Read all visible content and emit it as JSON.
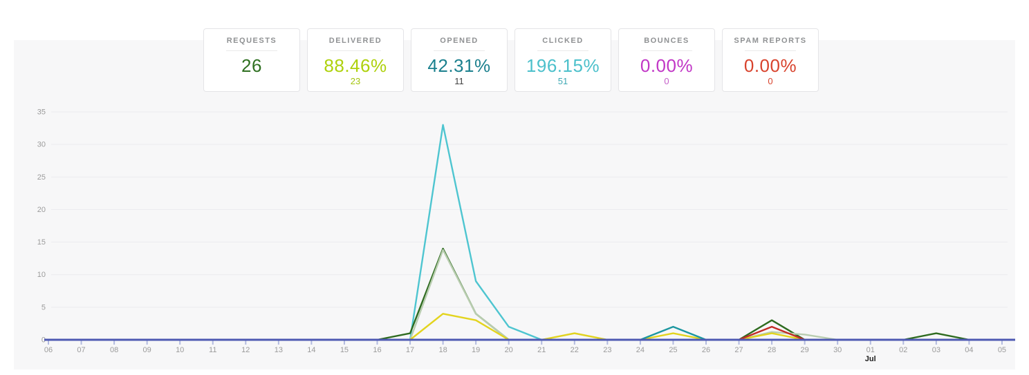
{
  "page": {
    "background": "#ffffff",
    "panel_background": "#f7f7f8"
  },
  "cards": [
    {
      "title": "REQUESTS",
      "value": "26",
      "sub": "",
      "color": "#2f7021",
      "sub_color": "#2f7021"
    },
    {
      "title": "DELIVERED",
      "value": "88.46%",
      "sub": "23",
      "color": "#aed10c",
      "sub_color": "#a3c40d"
    },
    {
      "title": "OPENED",
      "value": "42.31%",
      "sub": "11",
      "color": "#1b808e",
      "sub_color": "#414141"
    },
    {
      "title": "CLICKED",
      "value": "196.15%",
      "sub": "51",
      "color": "#4cc0cb",
      "sub_color": "#3fa9b4"
    },
    {
      "title": "BOUNCES",
      "value": "0.00%",
      "sub": "0",
      "color": "#c136c6",
      "sub_color": "#c45fc9"
    },
    {
      "title": "SPAM REPORTS",
      "value": "0.00%",
      "sub": "0",
      "color": "#d8432d",
      "sub_color": "#d8432d"
    }
  ],
  "chart_data": {
    "type": "line",
    "title": "",
    "xlabel": "",
    "ylabel": "",
    "x_labels": [
      "06",
      "07",
      "08",
      "09",
      "10",
      "11",
      "12",
      "13",
      "14",
      "15",
      "16",
      "17",
      "18",
      "19",
      "20",
      "21",
      "22",
      "23",
      "24",
      "25",
      "26",
      "27",
      "28",
      "29",
      "30",
      "01",
      "02",
      "03",
      "04",
      "05"
    ],
    "month_break": {
      "index": 25,
      "label": "Jul"
    },
    "y_ticks": [
      0,
      5,
      10,
      15,
      20,
      25,
      30,
      35
    ],
    "ylim": [
      0,
      36.8
    ],
    "grid": true,
    "legend": "none",
    "grid_color": "#ebebee",
    "axis_color": "#4e59b2",
    "tick_color": "#b3bbdf",
    "series": [
      {
        "name": "light-cyan",
        "color": "#4ec5d0",
        "values": [
          0,
          0,
          0,
          0,
          0,
          0,
          0,
          0,
          0,
          0,
          0,
          0,
          33,
          9,
          2,
          0,
          0,
          0,
          0,
          0,
          0,
          0,
          0,
          0,
          0,
          0,
          0,
          0,
          0,
          0
        ]
      },
      {
        "name": "dark-green",
        "color": "#2e6b1f",
        "values": [
          0,
          0,
          0,
          0,
          0,
          0,
          0,
          0,
          0,
          0,
          0,
          1,
          14,
          4,
          0,
          0,
          0,
          0,
          0,
          0,
          0,
          0,
          3,
          0,
          0,
          0,
          0,
          1,
          0,
          0
        ]
      },
      {
        "name": "pale-sage",
        "color": "#b9cdb0",
        "values": [
          0,
          0,
          0,
          0,
          0,
          0,
          0,
          0,
          0,
          0,
          0,
          0,
          13.8,
          4,
          0,
          0,
          1,
          0,
          0,
          0,
          0,
          0,
          1.2,
          0.8,
          0,
          0,
          0,
          0,
          0,
          0
        ]
      },
      {
        "name": "yellow",
        "color": "#e3d41e",
        "values": [
          0,
          0,
          0,
          0,
          0,
          0,
          0,
          0,
          0,
          0,
          0,
          0,
          4,
          3,
          0,
          0,
          1,
          0,
          0,
          1,
          0,
          0,
          1,
          0,
          0,
          0,
          0,
          0,
          0,
          0
        ]
      },
      {
        "name": "dark-teal",
        "color": "#1d97a0",
        "values": [
          0,
          0,
          0,
          0,
          0,
          0,
          0,
          0,
          0,
          0,
          0,
          0,
          0,
          0,
          0,
          0,
          0,
          0,
          0,
          2,
          0,
          0,
          0,
          0,
          0,
          0,
          0,
          0,
          0,
          0
        ]
      },
      {
        "name": "red",
        "color": "#c32d26",
        "values": [
          0,
          0,
          0,
          0,
          0,
          0,
          0,
          0,
          0,
          0,
          0,
          0,
          0,
          0,
          0,
          0,
          0,
          0,
          0,
          0,
          0,
          0,
          2,
          0,
          0,
          0,
          0,
          0,
          0,
          0
        ]
      }
    ]
  }
}
